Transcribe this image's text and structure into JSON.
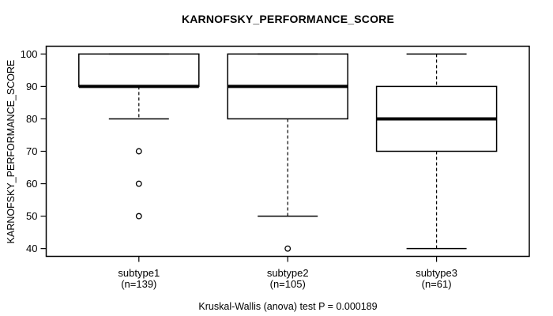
{
  "chart_data": {
    "type": "boxplot",
    "title": "KARNOFSKY_PERFORMANCE_SCORE",
    "ylabel": "KARNOFSKY_PERFORMANCE_SCORE",
    "xlabel": "",
    "yticks": [
      40,
      50,
      60,
      70,
      80,
      90,
      100
    ],
    "ylim": [
      37.6,
      102.4
    ],
    "grid": false,
    "categories": [
      "subtype1",
      "subtype2",
      "subtype3"
    ],
    "groups": [
      {
        "label": "subtype1",
        "sublabel": "(n=139)",
        "n": 139,
        "q1": 90,
        "median": 90,
        "q3": 100,
        "whisker_low": 80,
        "whisker_high": 100,
        "outliers": [
          70,
          60,
          50
        ]
      },
      {
        "label": "subtype2",
        "sublabel": "(n=105)",
        "n": 105,
        "q1": 80,
        "median": 90,
        "q3": 100,
        "whisker_low": 50,
        "whisker_high": 100,
        "outliers": [
          40
        ]
      },
      {
        "label": "subtype3",
        "sublabel": "(n=61)",
        "n": 61,
        "q1": 70,
        "median": 80,
        "q3": 90,
        "whisker_low": 40,
        "whisker_high": 100,
        "outliers": []
      }
    ],
    "annotation": "Kruskal-Wallis (anova) test P = 0.000189",
    "colors": {
      "line": "#000000",
      "box_fill": "#ffffff",
      "background": "#ffffff"
    }
  }
}
